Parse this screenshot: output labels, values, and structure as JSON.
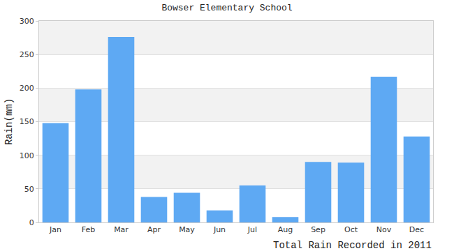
{
  "chart_data": {
    "type": "bar",
    "title": "Bowser Elementary School",
    "categories": [
      "Jan",
      "Feb",
      "Mar",
      "Apr",
      "May",
      "Jun",
      "Jul",
      "Aug",
      "Sep",
      "Oct",
      "Nov",
      "Dec"
    ],
    "values": [
      148,
      198,
      276,
      38,
      44,
      18,
      55,
      8,
      90,
      89,
      217,
      128
    ],
    "color": "#5ea9f3",
    "ylabel": "Rain(mm)",
    "xlabel": "Total Rain Recorded in 2011",
    "ylim": [
      0,
      300
    ],
    "yticks": [
      0,
      50,
      100,
      150,
      200,
      250,
      300
    ],
    "grid": true
  }
}
